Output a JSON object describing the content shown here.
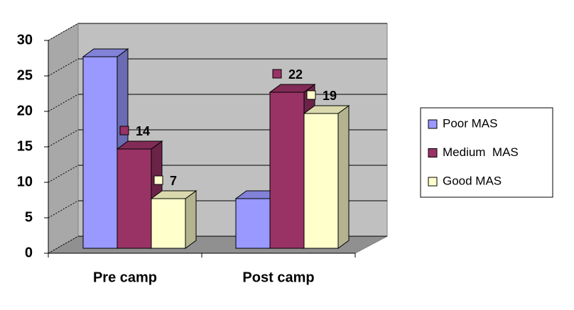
{
  "chart_data": {
    "type": "bar",
    "three_d": true,
    "categories": [
      "Pre camp",
      "Post camp"
    ],
    "series": [
      {
        "name": "Poor MAS",
        "color": "#9999ff",
        "show_labels": false,
        "values": [
          27,
          7
        ]
      },
      {
        "name": "Medium  MAS",
        "color": "#993366",
        "show_labels": true,
        "values": [
          14,
          22
        ]
      },
      {
        "name": "Good MAS",
        "color": "#ffffcc",
        "show_labels": true,
        "values": [
          7,
          19
        ]
      }
    ],
    "ylim": [
      0,
      30
    ],
    "yticks": [
      0,
      5,
      10,
      15,
      20,
      25,
      30
    ],
    "grid": true,
    "legend": "right"
  }
}
